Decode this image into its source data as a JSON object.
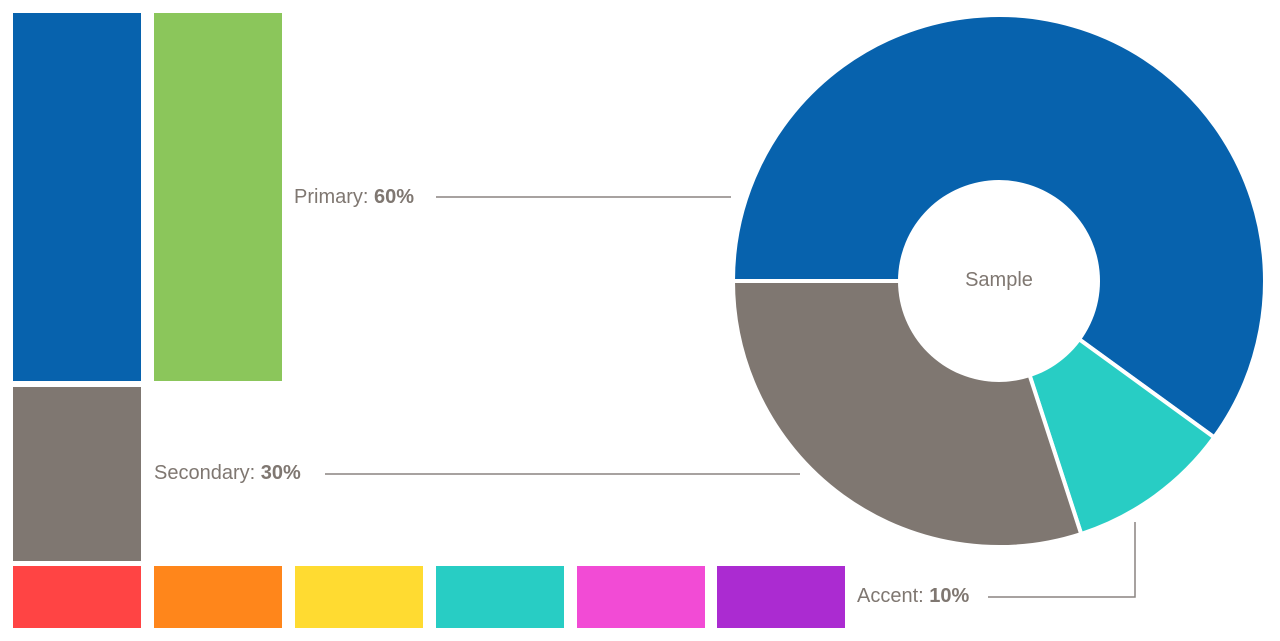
{
  "colors": {
    "primary": "#0762ad",
    "secondary_green": "#8bc65b",
    "secondary": "#7f7771",
    "accent": "#28cdc4",
    "line": "#8a8480"
  },
  "palette": {
    "accent_swatches": [
      {
        "color": "#ff4444"
      },
      {
        "color": "#ff861b"
      },
      {
        "color": "#ffdb31"
      },
      {
        "color": "#28cdc4"
      },
      {
        "color": "#f24bd5"
      },
      {
        "color": "#ab2bd1"
      }
    ]
  },
  "legend": {
    "primary": {
      "label": "Primary:",
      "value": "60%"
    },
    "secondary": {
      "label": "Secondary:",
      "value": "30%"
    },
    "accent": {
      "label": "Accent:",
      "value": "10%"
    }
  },
  "donut": {
    "center_label": "Sample",
    "segments": [
      {
        "name": "Primary",
        "value": 60,
        "color": "#0762ad"
      },
      {
        "name": "Accent",
        "value": 10,
        "color": "#28cdc4"
      },
      {
        "name": "Secondary",
        "value": 30,
        "color": "#7f7771"
      }
    ]
  }
}
